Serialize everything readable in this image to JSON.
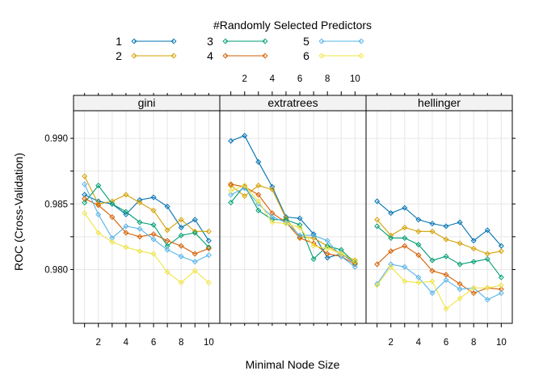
{
  "chart_data": {
    "type": "line",
    "title": "",
    "xlabel": "Minimal Node Size",
    "ylabel": "ROC (Cross-Validation)",
    "xlim": [
      0.2,
      10.8
    ],
    "ylim": [
      0.9759,
      0.9921
    ],
    "x": [
      1,
      2,
      3,
      4,
      5,
      6,
      7,
      8,
      9,
      10
    ],
    "x_ticks": [
      2,
      4,
      6,
      8,
      10
    ],
    "y_ticks": [
      0.98,
      0.985,
      0.99
    ],
    "y_tick_labels": [
      "0.980",
      "0.985",
      "0.990"
    ],
    "grid": true,
    "legend": {
      "title": "#Randomly Selected Predictors",
      "placement": "top",
      "entries": [
        "1",
        "2",
        "3",
        "4",
        "5",
        "6"
      ]
    },
    "series_colors": [
      "#0072B2",
      "#D4A000",
      "#009E73",
      "#D55E00",
      "#56B4E9",
      "#F0E442"
    ],
    "panels": [
      {
        "name": "gini",
        "series": [
          {
            "name": "1",
            "values": [
              0.9857,
              0.9852,
              0.985,
              0.9842,
              0.9853,
              0.9855,
              0.9848,
              0.9832,
              0.9838,
              0.9822
            ]
          },
          {
            "name": "2",
            "values": [
              0.9871,
              0.985,
              0.9852,
              0.9857,
              0.9851,
              0.9845,
              0.983,
              0.9838,
              0.9829,
              0.9829
            ]
          },
          {
            "name": "3",
            "values": [
              0.9851,
              0.9864,
              0.985,
              0.9844,
              0.9836,
              0.9834,
              0.9818,
              0.9826,
              0.9828,
              0.9817
            ]
          },
          {
            "name": "4",
            "values": [
              0.9854,
              0.9849,
              0.984,
              0.9828,
              0.9825,
              0.9827,
              0.9822,
              0.9818,
              0.9812,
              0.9816
            ]
          },
          {
            "name": "5",
            "values": [
              0.9865,
              0.9842,
              0.9824,
              0.9833,
              0.9831,
              0.9823,
              0.9815,
              0.981,
              0.9806,
              0.9811
            ]
          },
          {
            "name": "6",
            "values": [
              0.9843,
              0.9828,
              0.9821,
              0.9817,
              0.9814,
              0.9812,
              0.9798,
              0.979,
              0.9799,
              0.979
            ]
          }
        ]
      },
      {
        "name": "extratrees",
        "series": [
          {
            "name": "1",
            "values": [
              0.9898,
              0.9902,
              0.9882,
              0.9863,
              0.984,
              0.9839,
              0.9827,
              0.9809,
              0.9812,
              0.9805
            ]
          },
          {
            "name": "2",
            "values": [
              0.9864,
              0.9856,
              0.9864,
              0.9861,
              0.9839,
              0.9825,
              0.9824,
              0.9818,
              0.9812,
              0.9807
            ]
          },
          {
            "name": "3",
            "values": [
              0.9851,
              0.9864,
              0.9845,
              0.9838,
              0.9838,
              0.9834,
              0.9808,
              0.9818,
              0.9815,
              0.9805
            ]
          },
          {
            "name": "4",
            "values": [
              0.9865,
              0.9863,
              0.9857,
              0.9843,
              0.9836,
              0.9824,
              0.982,
              0.9812,
              0.981,
              0.9804
            ]
          },
          {
            "name": "5",
            "values": [
              0.9857,
              0.9862,
              0.985,
              0.984,
              0.9836,
              0.9826,
              0.9826,
              0.9822,
              0.981,
              0.9802
            ]
          },
          {
            "name": "6",
            "values": [
              0.986,
              0.9864,
              0.9852,
              0.9836,
              0.9835,
              0.9832,
              0.9818,
              0.9816,
              0.9812,
              0.9806
            ]
          }
        ]
      },
      {
        "name": "hellinger",
        "series": [
          {
            "name": "1",
            "values": [
              0.9852,
              0.9843,
              0.9847,
              0.9838,
              0.9835,
              0.9833,
              0.9836,
              0.9822,
              0.983,
              0.9818
            ]
          },
          {
            "name": "2",
            "values": [
              0.9838,
              0.9826,
              0.9832,
              0.9829,
              0.9829,
              0.9823,
              0.982,
              0.9816,
              0.9812,
              0.9814
            ]
          },
          {
            "name": "3",
            "values": [
              0.9833,
              0.9824,
              0.9824,
              0.9819,
              0.9807,
              0.981,
              0.9804,
              0.9806,
              0.9808,
              0.9794
            ]
          },
          {
            "name": "4",
            "values": [
              0.9804,
              0.9814,
              0.9818,
              0.9811,
              0.9799,
              0.9796,
              0.9789,
              0.9782,
              0.9786,
              0.9785
            ]
          },
          {
            "name": "5",
            "values": [
              0.9789,
              0.9804,
              0.9802,
              0.9794,
              0.9782,
              0.9792,
              0.9785,
              0.9786,
              0.9777,
              0.9782
            ]
          },
          {
            "name": "6",
            "values": [
              0.9788,
              0.9802,
              0.9791,
              0.979,
              0.9791,
              0.977,
              0.9778,
              0.9786,
              0.9786,
              0.9788
            ]
          }
        ]
      }
    ]
  }
}
